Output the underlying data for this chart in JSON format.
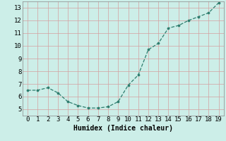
{
  "x": [
    0,
    1,
    2,
    3,
    4,
    5,
    6,
    7,
    8,
    9,
    10,
    11,
    12,
    13,
    14,
    15,
    16,
    17,
    18,
    19
  ],
  "y": [
    6.5,
    6.5,
    6.7,
    6.3,
    5.6,
    5.3,
    5.1,
    5.1,
    5.2,
    5.6,
    6.9,
    7.7,
    9.7,
    10.2,
    11.4,
    11.6,
    12.0,
    12.3,
    12.6,
    13.4
  ],
  "line_color": "#2e7d6e",
  "marker_color": "#2e7d6e",
  "bg_color": "#cceee8",
  "grid_major_color": "#d4a0a0",
  "grid_minor_color": "#cceee8",
  "xlabel": "Humidex (Indice chaleur)",
  "xlim": [
    -0.5,
    19.5
  ],
  "ylim": [
    4.5,
    13.5
  ],
  "xticks": [
    0,
    1,
    2,
    3,
    4,
    5,
    6,
    7,
    8,
    9,
    10,
    11,
    12,
    13,
    14,
    15,
    16,
    17,
    18,
    19
  ],
  "yticks": [
    5,
    6,
    7,
    8,
    9,
    10,
    11,
    12,
    13
  ],
  "xlabel_fontsize": 7,
  "tick_fontsize": 6.5
}
